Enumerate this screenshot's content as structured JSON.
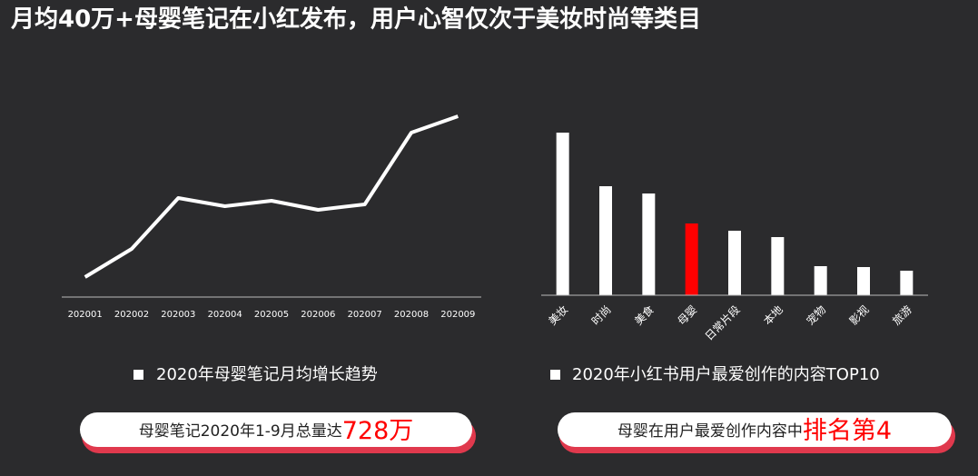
{
  "title": "月均40万+母婴笔记在小红发布，用户心智仅次于美妆时尚等类目",
  "chart_data": [
    {
      "type": "line",
      "caption": "2020年母婴笔记月均增长趋势",
      "color": "#ffffff",
      "categories": [
        "202001",
        "202002",
        "202003",
        "202004",
        "202005",
        "202006",
        "202007",
        "202008",
        "202009"
      ],
      "values": [
        22,
        53,
        109,
        100,
        106,
        96,
        102,
        181,
        199
      ],
      "ylim": [
        0,
        210
      ]
    },
    {
      "type": "bar",
      "caption": "2020年小红书用户最爱创作的内容TOP10",
      "categories": [
        "美妆",
        "时尚",
        "美食",
        "母婴",
        "日常片段",
        "本地",
        "宠物",
        "影视",
        "旅游"
      ],
      "values": [
        179,
        120,
        112,
        79,
        71,
        64,
        32,
        31,
        27
      ],
      "colors": [
        "#ffffff",
        "#ffffff",
        "#ffffff",
        "#ff0000",
        "#ffffff",
        "#ffffff",
        "#ffffff",
        "#ffffff",
        "#ffffff"
      ],
      "ylim": [
        0,
        185
      ]
    }
  ],
  "callouts": [
    {
      "text": "母婴笔记2020年1-9月总量达",
      "highlight": "728万"
    },
    {
      "text": "母婴在用户最爱创作内容中",
      "highlight": "排名第4"
    }
  ]
}
